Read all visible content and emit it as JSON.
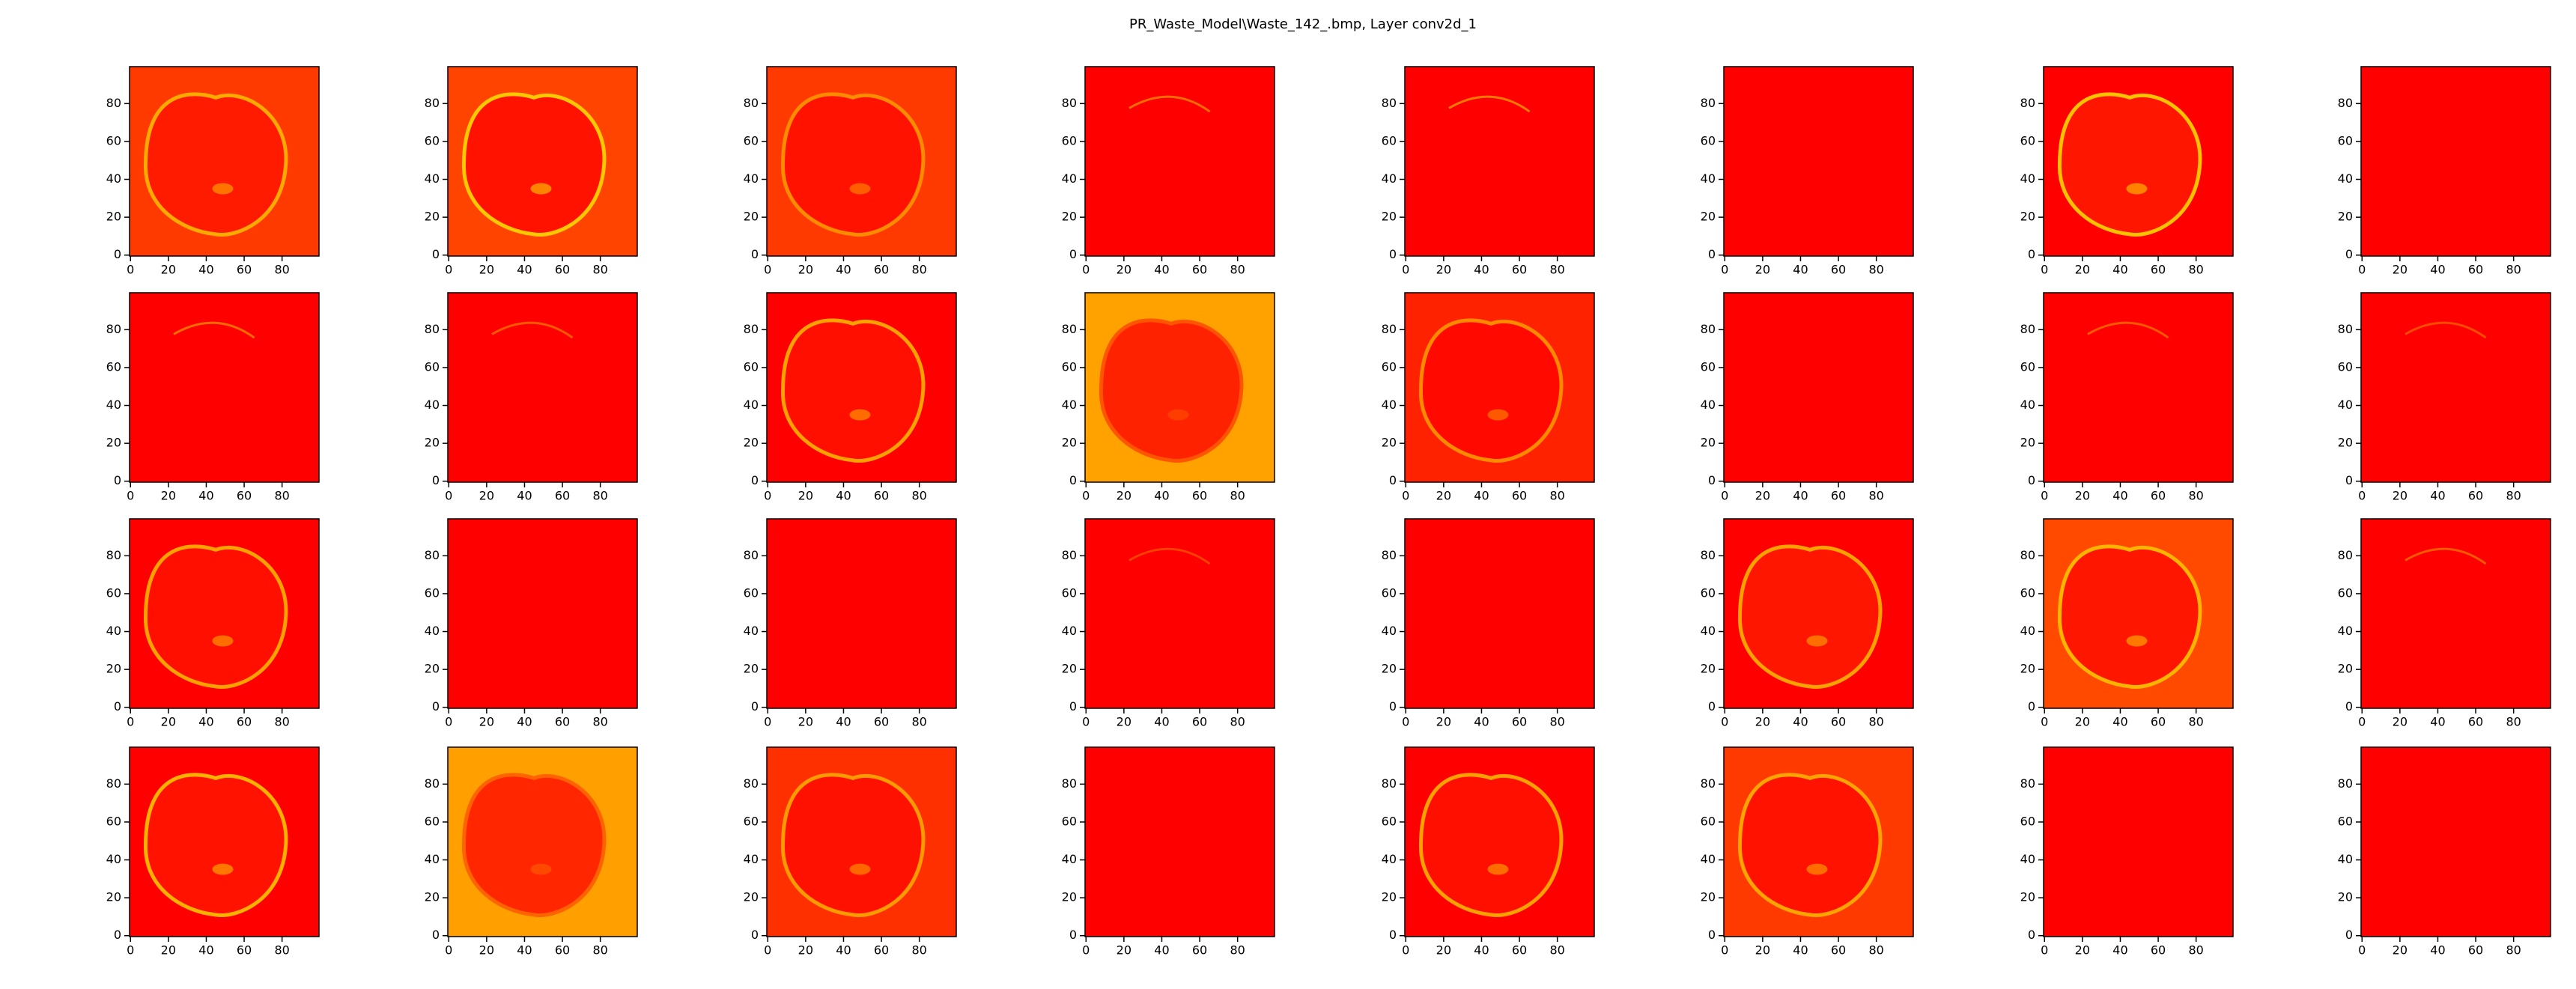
{
  "chart_data": {
    "type": "image-grid",
    "title": "PR_Waste_Model\\Waste_142_.bmp, Layer conv2d_1",
    "xlim": [
      -0.5,
      99.5
    ],
    "ylim": [
      99.5,
      -0.5
    ],
    "xticks": [
      0,
      20,
      40,
      60,
      80
    ],
    "yticks": [
      0,
      20,
      40,
      60,
      80
    ],
    "panels": [
      {
        "bg": "#ff3a00",
        "blob": "#ff1a00",
        "edge": "#ffb000"
      },
      {
        "bg": "#ff4400",
        "blob": "#ff1000",
        "edge": "#ffd000"
      },
      {
        "bg": "#ff3a00",
        "blob": "#ff1000",
        "edge": "#ff9000"
      },
      {
        "bg": "#ff0000",
        "blob": null,
        "edge": "#ff8800"
      },
      {
        "bg": "#ff0000",
        "blob": null,
        "edge": "#ff9900"
      },
      {
        "bg": "#ff0000",
        "blob": null,
        "edge": null
      },
      {
        "bg": "#ff0000",
        "blob": "#ff1800",
        "edge": "#ffcc00"
      },
      {
        "bg": "#ff0000",
        "blob": null,
        "edge": null
      },
      {
        "bg": "#ff0000",
        "blob": null,
        "edge": "#ff8800"
      },
      {
        "bg": "#ff0000",
        "blob": null,
        "edge": "#ff7000"
      },
      {
        "bg": "#ff0000",
        "blob": "#ff1000",
        "edge": "#ffaa00"
      },
      {
        "bg": "#ffa200",
        "blob": "#ff1c00",
        "edge": "#ff5000"
      },
      {
        "bg": "#ff2200",
        "blob": "#ff0800",
        "edge": "#ff9000"
      },
      {
        "bg": "#ff0000",
        "blob": null,
        "edge": null
      },
      {
        "bg": "#ff0000",
        "blob": null,
        "edge": "#ff7000"
      },
      {
        "bg": "#ff0000",
        "blob": null,
        "edge": "#ff6000"
      },
      {
        "bg": "#ff0000",
        "blob": "#ff1000",
        "edge": "#ffaa00"
      },
      {
        "bg": "#ff0000",
        "blob": null,
        "edge": null
      },
      {
        "bg": "#ff0000",
        "blob": null,
        "edge": null
      },
      {
        "bg": "#ff0000",
        "blob": null,
        "edge": "#ff5000"
      },
      {
        "bg": "#ff0000",
        "blob": null,
        "edge": null
      },
      {
        "bg": "#ff0000",
        "blob": "#ff1800",
        "edge": "#ffaa00"
      },
      {
        "bg": "#ff4a00",
        "blob": "#ff1400",
        "edge": "#ffbb00"
      },
      {
        "bg": "#ff0000",
        "blob": null,
        "edge": "#ff7000"
      },
      {
        "bg": "#ff0000",
        "blob": "#ff1400",
        "edge": "#ffbb00"
      },
      {
        "bg": "#ffa000",
        "blob": "#ff2000",
        "edge": "#ff6000"
      },
      {
        "bg": "#ff3000",
        "blob": "#ff1000",
        "edge": "#ffa000"
      },
      {
        "bg": "#ff0000",
        "blob": null,
        "edge": null
      },
      {
        "bg": "#ff0000",
        "blob": "#ff1000",
        "edge": "#ffaa00"
      },
      {
        "bg": "#ff3a00",
        "blob": "#ff1000",
        "edge": "#ffaa00"
      },
      {
        "bg": "#ff0000",
        "blob": null,
        "edge": null
      },
      {
        "bg": "#ff0000",
        "blob": null,
        "edge": null
      }
    ]
  }
}
